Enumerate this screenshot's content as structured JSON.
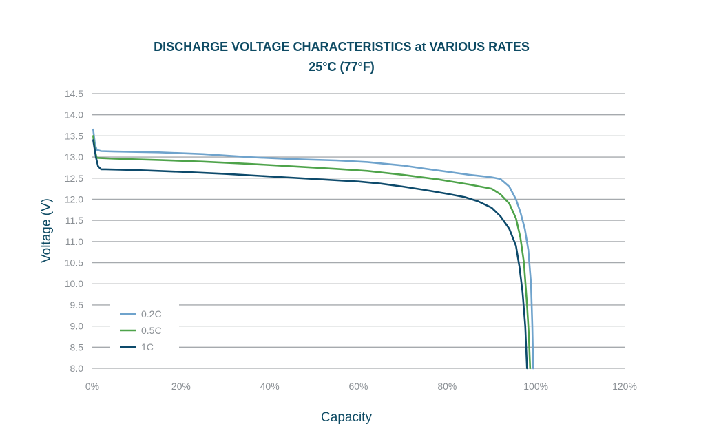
{
  "chart_data": {
    "type": "line",
    "title": "DISCHARGE VOLTAGE CHARACTERISTICS at VARIOUS RATES",
    "subtitle": "25°C (77°F)",
    "xlabel": "Capacity",
    "ylabel": "Voltage (V)",
    "xlim": [
      0,
      120
    ],
    "ylim": [
      8.0,
      14.5
    ],
    "x_ticks": [
      "0%",
      "20%",
      "40%",
      "60%",
      "80%",
      "100%",
      "120%"
    ],
    "x_tick_values": [
      0,
      20,
      40,
      60,
      80,
      100,
      120
    ],
    "y_ticks": [
      "8.0",
      "8.5",
      "9.0",
      "9.5",
      "10.0",
      "10.5",
      "11.0",
      "11.5",
      "12.0",
      "12.5",
      "13.0",
      "13.5",
      "14.0",
      "14.5"
    ],
    "y_tick_values": [
      8.0,
      8.5,
      9.0,
      9.5,
      10.0,
      10.5,
      11.0,
      11.5,
      12.0,
      12.5,
      13.0,
      13.5,
      14.0,
      14.5
    ],
    "grid": "horizontal",
    "legend_position": "bottom-left",
    "series": [
      {
        "name": "0.2C",
        "color": "#6fa3cc",
        "points": [
          [
            0.2,
            13.65
          ],
          [
            0.6,
            13.3
          ],
          [
            1.0,
            13.17
          ],
          [
            2.0,
            13.14
          ],
          [
            5,
            13.13
          ],
          [
            15,
            13.11
          ],
          [
            25,
            13.07
          ],
          [
            35,
            13.0
          ],
          [
            45,
            12.95
          ],
          [
            55,
            12.92
          ],
          [
            62,
            12.88
          ],
          [
            70,
            12.8
          ],
          [
            78,
            12.68
          ],
          [
            85,
            12.58
          ],
          [
            90,
            12.52
          ],
          [
            92,
            12.48
          ],
          [
            94,
            12.3
          ],
          [
            95.5,
            12.0
          ],
          [
            96.5,
            11.7
          ],
          [
            97.5,
            11.3
          ],
          [
            98.3,
            10.8
          ],
          [
            98.9,
            10.0
          ],
          [
            99.2,
            9.0
          ],
          [
            99.4,
            8.0
          ]
        ]
      },
      {
        "name": "0.5C",
        "color": "#4ea34a",
        "points": [
          [
            0.2,
            13.5
          ],
          [
            0.6,
            13.15
          ],
          [
            1.0,
            12.98
          ],
          [
            5,
            12.96
          ],
          [
            15,
            12.93
          ],
          [
            25,
            12.89
          ],
          [
            35,
            12.84
          ],
          [
            45,
            12.78
          ],
          [
            55,
            12.72
          ],
          [
            62,
            12.67
          ],
          [
            70,
            12.58
          ],
          [
            78,
            12.47
          ],
          [
            85,
            12.35
          ],
          [
            90,
            12.25
          ],
          [
            92,
            12.12
          ],
          [
            94,
            11.9
          ],
          [
            95.5,
            11.55
          ],
          [
            96.5,
            11.1
          ],
          [
            97.3,
            10.5
          ],
          [
            98.0,
            9.5
          ],
          [
            98.4,
            8.8
          ],
          [
            98.7,
            8.0
          ]
        ]
      },
      {
        "name": "1C",
        "color": "#0d4a6b",
        "points": [
          [
            0.2,
            13.4
          ],
          [
            0.8,
            13.0
          ],
          [
            1.3,
            12.78
          ],
          [
            2.0,
            12.71
          ],
          [
            3.0,
            12.71
          ],
          [
            10,
            12.69
          ],
          [
            20,
            12.65
          ],
          [
            30,
            12.6
          ],
          [
            40,
            12.54
          ],
          [
            50,
            12.48
          ],
          [
            60,
            12.42
          ],
          [
            65,
            12.37
          ],
          [
            70,
            12.3
          ],
          [
            75,
            12.22
          ],
          [
            80,
            12.13
          ],
          [
            84,
            12.05
          ],
          [
            87,
            11.95
          ],
          [
            90,
            11.8
          ],
          [
            92,
            11.6
          ],
          [
            94,
            11.3
          ],
          [
            95.5,
            10.9
          ],
          [
            96.3,
            10.4
          ],
          [
            97.0,
            9.8
          ],
          [
            97.6,
            9.0
          ],
          [
            98.0,
            8.0
          ]
        ]
      }
    ]
  }
}
